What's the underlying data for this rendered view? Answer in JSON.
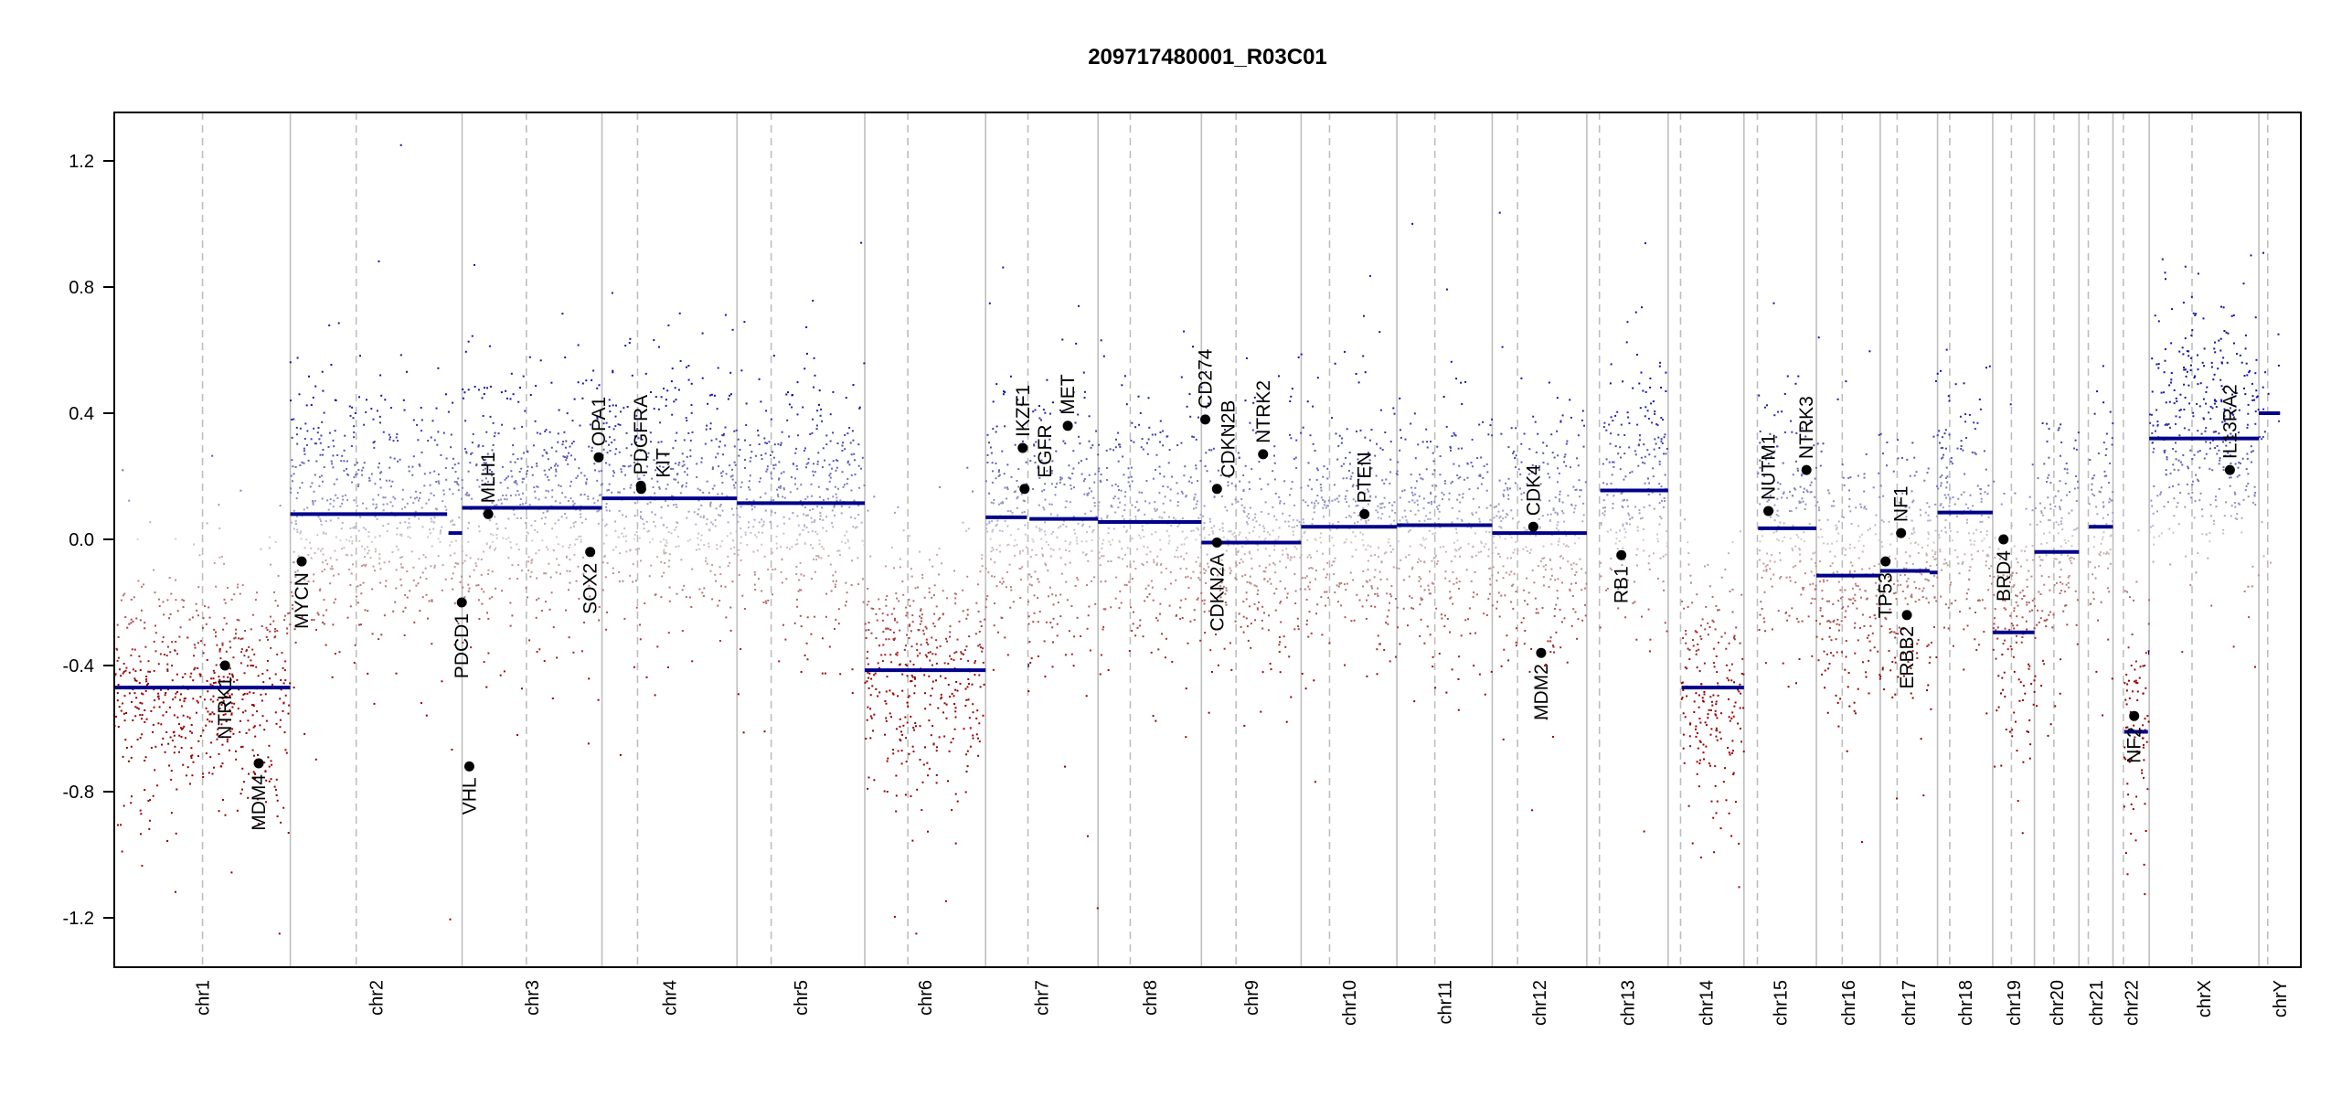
{
  "chart_data": {
    "type": "scatter",
    "title": "209717480001_R03C01",
    "xlabel": "",
    "ylabel": "",
    "ylim": [
      -1.36,
      1.36
    ],
    "yticks": [
      -1.2,
      -0.8,
      -0.4,
      0.0,
      0.4,
      0.8,
      1.2
    ],
    "ytick_labels": [
      "-1.2",
      "-0.8",
      "-0.4",
      "0.0",
      "0.4",
      "0.8",
      "1.2"
    ],
    "grid": false,
    "colors": {
      "segment": "#00008b",
      "gain": "#1414aa",
      "neutral": "#d2d2d2",
      "loss": "#960000",
      "gene_dot": "#000000",
      "chrom_sep": "#bebebe"
    },
    "chromosomes": [
      {
        "name": "chr1",
        "length": 249.25,
        "centromere": 125.0
      },
      {
        "name": "chr2",
        "length": 243.2,
        "centromere": 93.3
      },
      {
        "name": "chr3",
        "length": 198.02,
        "centromere": 91.0
      },
      {
        "name": "chr4",
        "length": 191.15,
        "centromere": 50.4
      },
      {
        "name": "chr5",
        "length": 180.92,
        "centromere": 48.4
      },
      {
        "name": "chr6",
        "length": 171.12,
        "centromere": 61.0
      },
      {
        "name": "chr7",
        "length": 159.14,
        "centromere": 59.9
      },
      {
        "name": "chr8",
        "length": 146.36,
        "centromere": 45.6
      },
      {
        "name": "chr9",
        "length": 141.21,
        "centromere": 49.0
      },
      {
        "name": "chr10",
        "length": 135.53,
        "centromere": 40.2
      },
      {
        "name": "chr11",
        "length": 135.01,
        "centromere": 53.7
      },
      {
        "name": "chr12",
        "length": 133.85,
        "centromere": 35.8
      },
      {
        "name": "chr13",
        "length": 115.17,
        "centromere": 17.9
      },
      {
        "name": "chr14",
        "length": 107.35,
        "centromere": 17.6
      },
      {
        "name": "chr15",
        "length": 102.53,
        "centromere": 19.0
      },
      {
        "name": "chr16",
        "length": 90.35,
        "centromere": 36.6
      },
      {
        "name": "chr17",
        "length": 81.2,
        "centromere": 24.0
      },
      {
        "name": "chr18",
        "length": 78.08,
        "centromere": 17.2
      },
      {
        "name": "chr19",
        "length": 59.13,
        "centromere": 26.5
      },
      {
        "name": "chr20",
        "length": 63.03,
        "centromere": 27.5
      },
      {
        "name": "chr21",
        "length": 48.13,
        "centromere": 13.2
      },
      {
        "name": "chr22",
        "length": 51.3,
        "centromere": 14.7
      },
      {
        "name": "chrX",
        "length": 155.27,
        "centromere": 60.6
      },
      {
        "name": "chrY",
        "length": 59.37,
        "centromere": 12.5
      }
    ],
    "segments": [
      {
        "chr": "chr1",
        "start": 0,
        "end": 249.25,
        "mean": -0.47
      },
      {
        "chr": "chr2",
        "start": 0,
        "end": 222,
        "mean": 0.08
      },
      {
        "chr": "chr2",
        "start": 224,
        "end": 243.2,
        "mean": 0.02
      },
      {
        "chr": "chr3",
        "start": 0,
        "end": 198.02,
        "mean": 0.1
      },
      {
        "chr": "chr4",
        "start": 0,
        "end": 191.15,
        "mean": 0.13
      },
      {
        "chr": "chr5",
        "start": 0,
        "end": 180.92,
        "mean": 0.115
      },
      {
        "chr": "chr6",
        "start": 0,
        "end": 171.12,
        "mean": -0.415
      },
      {
        "chr": "chr7",
        "start": 0,
        "end": 58.5,
        "mean": 0.07
      },
      {
        "chr": "chr7",
        "start": 59.9,
        "end": 61.5,
        "mean": -0.4
      },
      {
        "chr": "chr7",
        "start": 62,
        "end": 159.14,
        "mean": 0.065
      },
      {
        "chr": "chr8",
        "start": 0,
        "end": 146.36,
        "mean": 0.055
      },
      {
        "chr": "chr9",
        "start": 0,
        "end": 141.21,
        "mean": -0.01
      },
      {
        "chr": "chr10",
        "start": 0,
        "end": 135.53,
        "mean": 0.04
      },
      {
        "chr": "chr11",
        "start": 0,
        "end": 135.01,
        "mean": 0.045
      },
      {
        "chr": "chr12",
        "start": 0,
        "end": 133.85,
        "mean": 0.02
      },
      {
        "chr": "chr13",
        "start": 19,
        "end": 115.17,
        "mean": 0.155
      },
      {
        "chr": "chr14",
        "start": 19,
        "end": 107.35,
        "mean": -0.47
      },
      {
        "chr": "chr15",
        "start": 20,
        "end": 102.53,
        "mean": 0.035
      },
      {
        "chr": "chr16",
        "start": 0,
        "end": 90.35,
        "mean": -0.115
      },
      {
        "chr": "chr17",
        "start": 0,
        "end": 70,
        "mean": -0.1
      },
      {
        "chr": "chr17",
        "start": 70,
        "end": 81.2,
        "mean": -0.105
      },
      {
        "chr": "chr18",
        "start": 0,
        "end": 78.08,
        "mean": 0.085
      },
      {
        "chr": "chr19",
        "start": 0,
        "end": 59.13,
        "mean": -0.295
      },
      {
        "chr": "chr20",
        "start": 0,
        "end": 63.03,
        "mean": -0.04
      },
      {
        "chr": "chr21",
        "start": 14,
        "end": 48.13,
        "mean": 0.04
      },
      {
        "chr": "chr22",
        "start": 16,
        "end": 49.5,
        "mean": -0.61
      },
      {
        "chr": "chr22",
        "start": 49.8,
        "end": 51.3,
        "mean": -0.36
      },
      {
        "chr": "chrX",
        "start": 0,
        "end": 155.27,
        "mean": 0.32
      },
      {
        "chr": "chrY",
        "start": 0,
        "end": 30,
        "mean": 0.4
      }
    ],
    "genes": [
      {
        "name": "NTRK1",
        "chr": "chr1",
        "pos": 156.8,
        "value": -0.4,
        "label": "below"
      },
      {
        "name": "MDM4",
        "chr": "chr1",
        "pos": 204.5,
        "value": -0.71,
        "label": "below"
      },
      {
        "name": "MYCN",
        "chr": "chr2",
        "pos": 16.1,
        "value": -0.07,
        "label": "below"
      },
      {
        "name": "PDCD1",
        "chr": "chr2",
        "pos": 242.8,
        "value": -0.2,
        "label": "below"
      },
      {
        "name": "VHL",
        "chr": "chr3",
        "pos": 10.2,
        "value": -0.72,
        "label": "below"
      },
      {
        "name": "MLH1",
        "chr": "chr3",
        "pos": 37.0,
        "value": 0.08,
        "label": "above"
      },
      {
        "name": "SOX2",
        "chr": "chr3",
        "pos": 181.4,
        "value": -0.04,
        "label": "below"
      },
      {
        "name": "OPA1",
        "chr": "chr3",
        "pos": 193.3,
        "value": 0.26,
        "label": "above"
      },
      {
        "name": "PDGFRA",
        "chr": "chr4",
        "pos": 55.1,
        "value": 0.17,
        "label": "above"
      },
      {
        "name": "KIT",
        "chr": "chr4",
        "pos": 55.5,
        "value": 0.16,
        "label": "above"
      },
      {
        "name": "IKZF1",
        "chr": "chr7",
        "pos": 52.5,
        "value": 0.29,
        "label": "above"
      },
      {
        "name": "EGFR",
        "chr": "chr7",
        "pos": 55.1,
        "value": 0.16,
        "label": "above"
      },
      {
        "name": "MET",
        "chr": "chr7",
        "pos": 116.3,
        "value": 0.36,
        "label": "above"
      },
      {
        "name": "CD274",
        "chr": "chr9",
        "pos": 5.45,
        "value": 0.38,
        "label": "above"
      },
      {
        "name": "CDKN2A",
        "chr": "chr9",
        "pos": 21.97,
        "value": -0.01,
        "label": "below"
      },
      {
        "name": "CDKN2B",
        "chr": "chr9",
        "pos": 22.0,
        "value": 0.16,
        "label": "above"
      },
      {
        "name": "NTRK2",
        "chr": "chr9",
        "pos": 87.3,
        "value": 0.27,
        "label": "above"
      },
      {
        "name": "PTEN",
        "chr": "chr10",
        "pos": 89.6,
        "value": 0.08,
        "label": "above"
      },
      {
        "name": "CDK4",
        "chr": "chr12",
        "pos": 58.1,
        "value": 0.04,
        "label": "above"
      },
      {
        "name": "MDM2",
        "chr": "chr12",
        "pos": 69.2,
        "value": -0.36,
        "label": "below"
      },
      {
        "name": "RB1",
        "chr": "chr13",
        "pos": 48.9,
        "value": -0.05,
        "label": "below"
      },
      {
        "name": "NUTM1",
        "chr": "chr15",
        "pos": 34.6,
        "value": 0.09,
        "label": "above"
      },
      {
        "name": "NTRK3",
        "chr": "chr15",
        "pos": 88.5,
        "value": 0.22,
        "label": "above"
      },
      {
        "name": "TP53",
        "chr": "chr17",
        "pos": 7.6,
        "value": -0.07,
        "label": "below"
      },
      {
        "name": "NF1",
        "chr": "chr17",
        "pos": 29.5,
        "value": 0.02,
        "label": "above"
      },
      {
        "name": "ERBB2",
        "chr": "chr17",
        "pos": 37.8,
        "value": -0.24,
        "label": "below"
      },
      {
        "name": "BRD4",
        "chr": "chr19",
        "pos": 15.3,
        "value": 0.0,
        "label": "below"
      },
      {
        "name": "NF2",
        "chr": "chr22",
        "pos": 30.0,
        "value": -0.56,
        "label": "below"
      },
      {
        "name": "IL13RA2",
        "chr": "chrX",
        "pos": 114.2,
        "value": 0.22,
        "label": "above"
      }
    ]
  }
}
